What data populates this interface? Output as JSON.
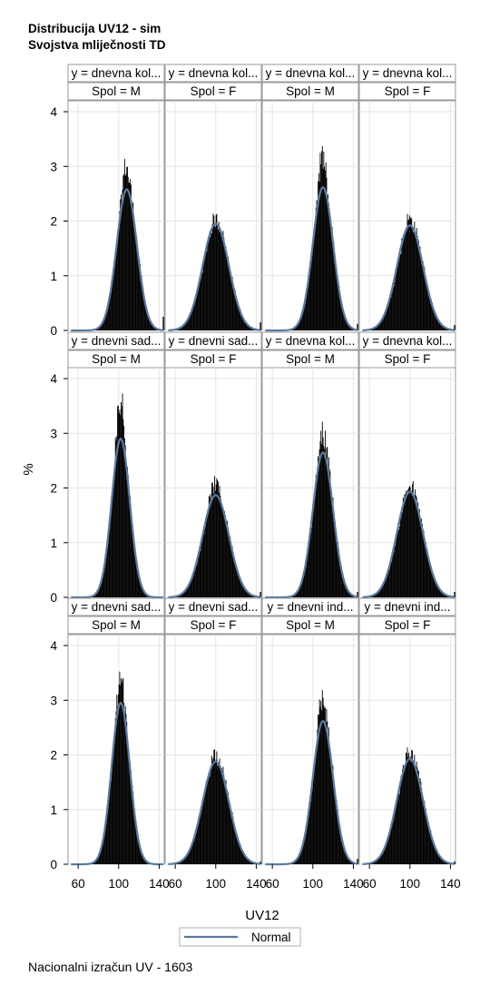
{
  "title_line1": "Distribucija UV12 - sim",
  "title_line2": "Svojstva mliječnosti TD",
  "footnote": "Nacionalni izračun UV - 1603",
  "colors": {
    "bars": "#000000",
    "normal_curve": "#5b7a9f",
    "grid": "#e4e4e4",
    "header_bg": "#ffffff",
    "frame": "#999999"
  },
  "chart_data": {
    "type": "histogram",
    "panel_layout": "3 rows x 4 columns",
    "xlabel": "UV12",
    "ylabel": "%",
    "xlim": [
      50,
      145
    ],
    "ylim": [
      0,
      4.2
    ],
    "xticks": [
      60,
      100,
      140
    ],
    "yticks": [
      0,
      1,
      2,
      3,
      4
    ],
    "grid": true,
    "legend": {
      "position": "bottom-center",
      "entries": [
        "Normal"
      ]
    },
    "panels": [
      {
        "row": 1,
        "col": 1,
        "y_label": "y = dnevna kol...",
        "spol_label": "Spol = M",
        "normal_mean": 108,
        "normal_sd": 10,
        "curve_peak": 2.58,
        "hist_peak": 3.12,
        "right_edge_bar": 0.25
      },
      {
        "row": 1,
        "col": 2,
        "y_label": "y = dnevna kol...",
        "spol_label": "Spol = F",
        "normal_mean": 100,
        "normal_sd": 13,
        "curve_peak": 1.95,
        "hist_peak": 2.05,
        "right_edge_bar": 0.15
      },
      {
        "row": 1,
        "col": 3,
        "y_label": "y = dnevna kol...",
        "spol_label": "Spol = M",
        "normal_mean": 110,
        "normal_sd": 10,
        "curve_peak": 2.62,
        "hist_peak": 3.3,
        "right_edge_bar": 0.12
      },
      {
        "row": 1,
        "col": 4,
        "y_label": "y = dnevna kol...",
        "spol_label": "Spol = F",
        "normal_mean": 100,
        "normal_sd": 13,
        "curve_peak": 1.92,
        "hist_peak": 2.08,
        "right_edge_bar": 0.1
      },
      {
        "row": 2,
        "col": 1,
        "y_label": "y = dnevni sad...",
        "spol_label": "Spol = M",
        "normal_mean": 102,
        "normal_sd": 9,
        "curve_peak": 2.9,
        "hist_peak": 3.85,
        "right_edge_bar": 0.0
      },
      {
        "row": 2,
        "col": 2,
        "y_label": "y = dnevni sad...",
        "spol_label": "Spol = F",
        "normal_mean": 100,
        "normal_sd": 13,
        "curve_peak": 1.87,
        "hist_peak": 2.12,
        "right_edge_bar": 0.1
      },
      {
        "row": 2,
        "col": 3,
        "y_label": "y = dnevna kol...",
        "spol_label": "Spol = M",
        "normal_mean": 110,
        "normal_sd": 10,
        "curve_peak": 2.65,
        "hist_peak": 3.18,
        "right_edge_bar": 0.1
      },
      {
        "row": 2,
        "col": 4,
        "y_label": "y = dnevna kol...",
        "spol_label": "Spol = F",
        "normal_mean": 100,
        "normal_sd": 13,
        "curve_peak": 1.93,
        "hist_peak": 2.08,
        "right_edge_bar": 0.1
      },
      {
        "row": 3,
        "col": 1,
        "y_label": "y = dnevni sad...",
        "spol_label": "Spol = M",
        "normal_mean": 102,
        "normal_sd": 9,
        "curve_peak": 2.95,
        "hist_peak": 3.65,
        "right_edge_bar": 0.0
      },
      {
        "row": 3,
        "col": 2,
        "y_label": "y = dnevni sad...",
        "spol_label": "Spol = F",
        "normal_mean": 100,
        "normal_sd": 13,
        "curve_peak": 1.88,
        "hist_peak": 2.05,
        "right_edge_bar": 0.05
      },
      {
        "row": 3,
        "col": 3,
        "y_label": "y = dnevni ind...",
        "spol_label": "Spol = M",
        "normal_mean": 110,
        "normal_sd": 10,
        "curve_peak": 2.62,
        "hist_peak": 3.15,
        "right_edge_bar": 0.1
      },
      {
        "row": 3,
        "col": 4,
        "y_label": "y = dnevni ind...",
        "spol_label": "Spol = F",
        "normal_mean": 100,
        "normal_sd": 13,
        "curve_peak": 1.93,
        "hist_peak": 2.05,
        "right_edge_bar": 0.05
      }
    ]
  }
}
